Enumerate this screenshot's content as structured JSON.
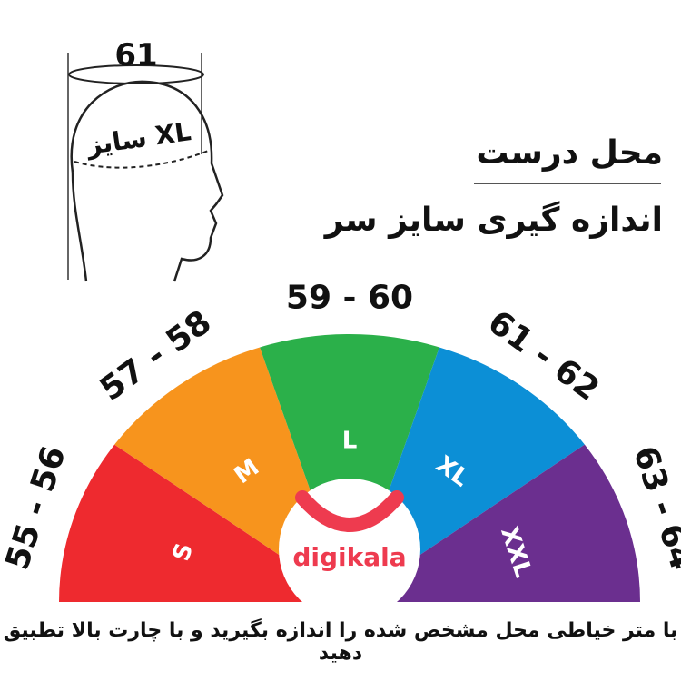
{
  "header": {
    "line1": "محل درست",
    "line2": "اندازه گیری سایز سر"
  },
  "head_figure": {
    "circumference": "61",
    "size_label": "سایز XL"
  },
  "chart_data": {
    "type": "semicircle-segments",
    "segments": [
      {
        "size": "S",
        "range": "55 - 56",
        "color": "#ee2a2f"
      },
      {
        "size": "M",
        "range": "57 - 58",
        "color": "#f7941d"
      },
      {
        "size": "L",
        "range": "59 - 60",
        "color": "#2bb04a"
      },
      {
        "size": "XL",
        "range": "61 - 62",
        "color": "#0c8fd6"
      },
      {
        "size": "XXL",
        "range": "63 - 64",
        "color": "#6b2f8f"
      }
    ]
  },
  "logo": {
    "text": "digikala",
    "color": "#ee3b4f"
  },
  "footer": "با متر خیاطی محل مشخص شده را اندازه بگیرید و با چارت بالا تطبیق دهید"
}
